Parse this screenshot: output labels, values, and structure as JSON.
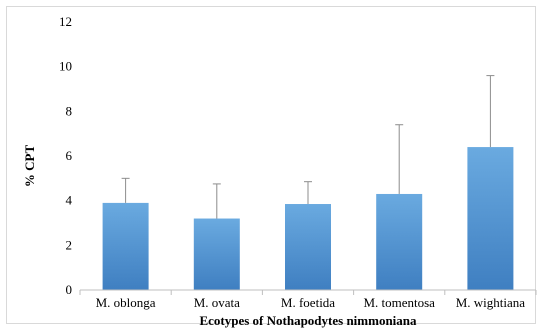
{
  "chart_data": {
    "type": "bar",
    "categories": [
      "M. oblonga",
      "M. ovata",
      "M. foetida",
      "M. tomentosa",
      "M. wightiana"
    ],
    "values": [
      3.9,
      3.2,
      3.85,
      4.3,
      6.4
    ],
    "error_bars_upper": [
      5.0,
      4.75,
      4.85,
      7.4,
      9.6
    ],
    "title": "",
    "xlabel": "Ecotypes of Nothapodytes nimmoniana",
    "ylabel": "% CPT",
    "ylim": [
      0,
      12
    ],
    "yticks": [
      "0",
      "2",
      "4",
      "6",
      "8",
      "10",
      "12"
    ],
    "grid": false,
    "bar_color": "#5b9bd5",
    "error_bar_color": "#8c8c8c"
  }
}
